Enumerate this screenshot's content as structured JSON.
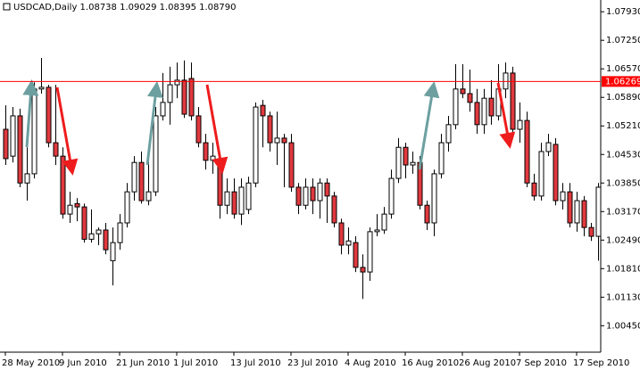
{
  "chart_data": {
    "type": "candlestick",
    "title": "USDCAD,Daily  1.08738 1.09029 1.08395 1.08790",
    "categories": [
      "28 May 2010",
      null,
      null,
      null,
      null,
      null,
      null,
      null,
      "9 Jun 2010",
      null,
      null,
      null,
      null,
      null,
      null,
      null,
      "21 Jun 2010",
      null,
      null,
      null,
      null,
      null,
      null,
      null,
      "1 Jul 2010",
      null,
      null,
      null,
      null,
      null,
      null,
      null,
      "13 Jul 2010",
      null,
      null,
      null,
      null,
      null,
      null,
      null,
      "23 Jul 2010",
      null,
      null,
      null,
      null,
      null,
      null,
      null,
      "4 Aug 2010",
      null,
      null,
      null,
      null,
      null,
      null,
      null,
      "16 Aug 2010",
      null,
      null,
      null,
      null,
      null,
      null,
      null,
      "26 Aug 2010",
      null,
      null,
      null,
      null,
      null,
      null,
      null,
      "7 Sep 2010",
      null,
      null,
      null,
      null,
      null,
      null,
      null,
      "17 Sep 2010",
      null,
      null,
      null
    ],
    "open": [
      1.0513,
      1.0449,
      1.0545,
      1.0385,
      1.0407,
      1.0609,
      1.0613,
      1.0481,
      1.0449,
      1.0311,
      1.0336,
      1.0328,
      1.0251,
      1.0264,
      1.0273,
      1.02,
      1.0243,
      1.029,
      1.0364,
      1.0434,
      1.0343,
      1.0364,
      1.0545,
      1.0577,
      1.0619,
      1.063,
      1.0634,
      1.0545,
      1.0481,
      1.0439,
      1.0443,
      1.0332,
      1.0364,
      1.0311,
      1.0322,
      1.0385,
      1.057,
      1.0545,
      1.0481,
      1.0492,
      1.0481,
      1.0375,
      1.0332,
      1.0375,
      1.0343,
      1.0385,
      1.0354,
      1.029,
      1.0237,
      1.0243,
      1.0184,
      1.0173,
      1.0269,
      1.0273,
      1.0311,
      1.0396,
      1.047,
      1.0428,
      1.0434,
      1.0332,
      1.029,
      1.0407,
      1.0481,
      1.0524,
      1.0609,
      1.0598,
      1.0577,
      1.0524,
      1.0587,
      1.0545,
      1.0609,
      1.0647,
      1.0513,
      1.0534,
      1.0385,
      1.0354,
      1.046,
      1.0477,
      1.0343,
      1.0364,
      1.029,
      1.0343,
      1.0279,
      1.0258
    ],
    "high": [
      1.057,
      1.0566,
      1.0562,
      1.047,
      1.0625,
      1.0683,
      1.0619,
      1.0619,
      1.047,
      1.0364,
      1.0349,
      1.0336,
      1.0322,
      1.0279,
      1.029,
      1.0279,
      1.0311,
      1.0385,
      1.0449,
      1.046,
      1.0439,
      1.0566,
      1.0647,
      1.0662,
      1.0672,
      1.0677,
      1.0672,
      1.0566,
      1.0502,
      1.0481,
      1.0455,
      1.0396,
      1.0396,
      1.0396,
      1.04,
      1.0577,
      1.0583,
      1.0555,
      1.0555,
      1.0502,
      1.0502,
      1.0385,
      1.0396,
      1.0396,
      1.0396,
      1.0396,
      1.0364,
      1.03,
      1.0279,
      1.0258,
      1.0215,
      1.0279,
      1.0311,
      1.0328,
      1.0417,
      1.0492,
      1.0481,
      1.046,
      1.0449,
      1.0343,
      1.0417,
      1.0502,
      1.0545,
      1.0668,
      1.0668,
      1.0655,
      1.0609,
      1.0609,
      1.063,
      1.0668,
      1.0672,
      1.0662,
      1.0577,
      1.0555,
      1.0407,
      1.0481,
      1.0502,
      1.0492,
      1.0385,
      1.0385,
      1.0364,
      1.0354,
      1.029,
      1.0385
    ],
    "low": [
      1.0428,
      1.0434,
      1.0375,
      1.0343,
      1.0396,
      1.0598,
      1.047,
      1.0428,
      1.03,
      1.029,
      1.0294,
      1.0243,
      1.0243,
      1.0237,
      1.0215,
      1.0141,
      1.0226,
      1.0279,
      1.0343,
      1.0336,
      1.0332,
      1.0354,
      1.0534,
      1.0524,
      1.0587,
      1.054,
      1.0534,
      1.047,
      1.0417,
      1.0407,
      1.03,
      1.0311,
      1.03,
      1.0285,
      1.0311,
      1.0375,
      1.047,
      1.046,
      1.0428,
      1.0375,
      1.0364,
      1.0311,
      1.0322,
      1.0311,
      1.03,
      1.029,
      1.0279,
      1.0215,
      1.0215,
      1.0173,
      1.0109,
      1.0152,
      1.0258,
      1.0264,
      1.03,
      1.0385,
      1.0396,
      1.0407,
      1.0322,
      1.0273,
      1.0258,
      1.0396,
      1.046,
      1.0513,
      1.0587,
      1.0555,
      1.0502,
      1.0502,
      1.0524,
      1.0534,
      1.0587,
      1.0502,
      1.0481,
      1.0375,
      1.0343,
      1.0343,
      1.0449,
      1.0332,
      1.0322,
      1.0279,
      1.0269,
      1.0258,
      1.0247,
      1.02
    ],
    "close": [
      1.0443,
      1.0545,
      1.0385,
      1.0407,
      1.0609,
      1.0613,
      1.0481,
      1.0449,
      1.0311,
      1.0332,
      1.0328,
      1.0251,
      1.0264,
      1.0273,
      1.0226,
      1.0243,
      1.029,
      1.0364,
      1.0434,
      1.0343,
      1.0364,
      1.0545,
      1.0577,
      1.0619,
      1.063,
      1.0549,
      1.0545,
      1.0481,
      1.0439,
      1.0449,
      1.0332,
      1.0364,
      1.0311,
      1.0375,
      1.0385,
      1.0566,
      1.0545,
      1.0481,
      1.0492,
      1.0481,
      1.0375,
      1.0332,
      1.0375,
      1.0343,
      1.0385,
      1.0354,
      1.029,
      1.0237,
      1.0247,
      1.0184,
      1.0173,
      1.0269,
      1.0273,
      1.0311,
      1.0396,
      1.047,
      1.0428,
      1.0434,
      1.0332,
      1.029,
      1.0407,
      1.0481,
      1.0524,
      1.0609,
      1.0598,
      1.0577,
      1.0524,
      1.0587,
      1.0545,
      1.0609,
      1.0647,
      1.0513,
      1.0534,
      1.0385,
      1.0354,
      1.046,
      1.0481,
      1.0343,
      1.0364,
      1.029,
      1.0343,
      1.0279,
      1.0258,
      1.0375
    ],
    "up_color": "#ffffff",
    "down_color": "#e0393e",
    "level": 1.06269,
    "level_color": "#ff0000",
    "ylim": [
      0.9982,
      1.0821
    ],
    "yticks": [
      {
        "value": 1.0793,
        "label": "1.07930"
      },
      {
        "value": 1.0725,
        "label": "1.07250"
      },
      {
        "value": 1.0657,
        "label": "1.06570"
      },
      {
        "value": 1.0589,
        "label": "1.05890"
      },
      {
        "value": 1.0521,
        "label": "1.05210"
      },
      {
        "value": 1.0453,
        "label": "1.04530"
      },
      {
        "value": 1.0385,
        "label": "1.03850"
      },
      {
        "value": 1.0317,
        "label": "1.03170"
      },
      {
        "value": 1.0249,
        "label": "1.02490"
      },
      {
        "value": 1.0181,
        "label": "1.01810"
      },
      {
        "value": 1.0113,
        "label": "1.01130"
      },
      {
        "value": 1.0045,
        "label": "1.00450"
      }
    ]
  }
}
